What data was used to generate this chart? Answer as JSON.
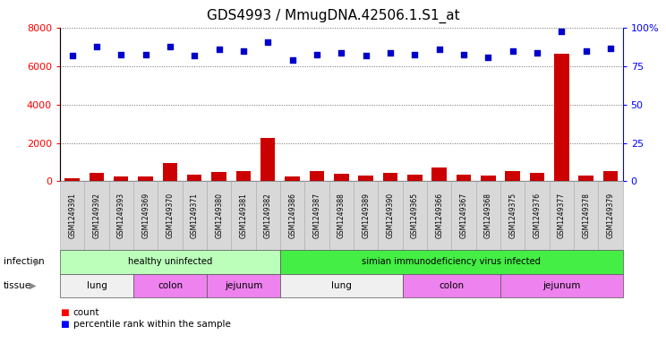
{
  "title": "GDS4993 / MmugDNA.42506.1.S1_at",
  "samples": [
    "GSM1249391",
    "GSM1249392",
    "GSM1249393",
    "GSM1249369",
    "GSM1249370",
    "GSM1249371",
    "GSM1249380",
    "GSM1249381",
    "GSM1249382",
    "GSM1249386",
    "GSM1249387",
    "GSM1249388",
    "GSM1249389",
    "GSM1249390",
    "GSM1249365",
    "GSM1249366",
    "GSM1249367",
    "GSM1249368",
    "GSM1249375",
    "GSM1249376",
    "GSM1249377",
    "GSM1249378",
    "GSM1249379"
  ],
  "counts": [
    180,
    430,
    235,
    270,
    960,
    325,
    475,
    510,
    2250,
    240,
    530,
    380,
    300,
    440,
    355,
    720,
    360,
    285,
    525,
    430,
    6650,
    280,
    545
  ],
  "percentiles": [
    82,
    88,
    83,
    83,
    88,
    82,
    86,
    85,
    91,
    79,
    83,
    84,
    82,
    84,
    83,
    86,
    83,
    81,
    85,
    84,
    98,
    85,
    87
  ],
  "infection_groups": [
    {
      "label": "healthy uninfected",
      "start": 0,
      "end": 9,
      "color": "#BBFFBB"
    },
    {
      "label": "simian immunodeficiency virus infected",
      "start": 9,
      "end": 23,
      "color": "#44EE44"
    }
  ],
  "tissue_groups": [
    {
      "label": "lung",
      "start": 0,
      "end": 3,
      "color": "#F0F0F0"
    },
    {
      "label": "colon",
      "start": 3,
      "end": 6,
      "color": "#EE82EE"
    },
    {
      "label": "jejunum",
      "start": 6,
      "end": 9,
      "color": "#EE82EE"
    },
    {
      "label": "lung",
      "start": 9,
      "end": 14,
      "color": "#F0F0F0"
    },
    {
      "label": "colon",
      "start": 14,
      "end": 18,
      "color": "#EE82EE"
    },
    {
      "label": "jejunum",
      "start": 18,
      "end": 23,
      "color": "#EE82EE"
    }
  ],
  "bar_color": "#CC0000",
  "dot_color": "#0000CC",
  "ylim_left": [
    0,
    8000
  ],
  "ylim_right": [
    0,
    100
  ],
  "yticks_left": [
    0,
    2000,
    4000,
    6000,
    8000
  ],
  "yticks_right": [
    0,
    25,
    50,
    75,
    100
  ],
  "bg_color": "#FFFFFF",
  "title_fontsize": 11,
  "xtick_bg": "#D8D8D8",
  "xtick_border": "#AAAAAA"
}
